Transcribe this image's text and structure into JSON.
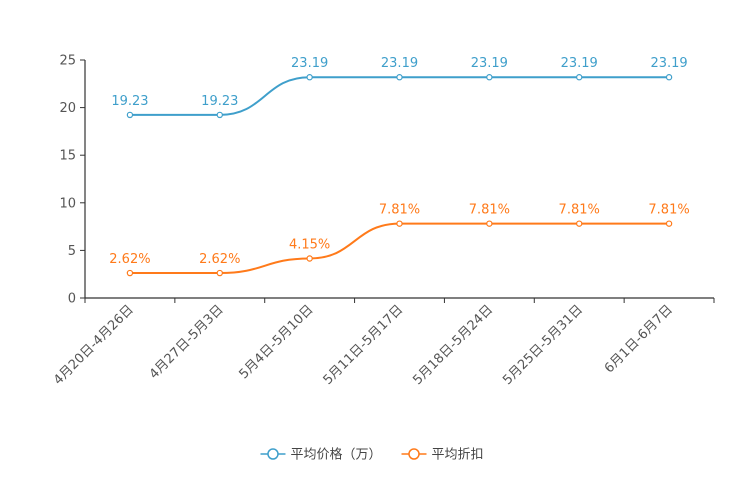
{
  "chart_data": {
    "type": "line",
    "categories": [
      "4月20日-4月26日",
      "4月27日-5月3日",
      "5月4日-5月10日",
      "5月11日-5月17日",
      "5月18日-5月24日",
      "5月25日-5月31日",
      "6月1日-6月7日"
    ],
    "ylim": [
      0,
      25
    ],
    "yticks": [
      0,
      5,
      10,
      15,
      20,
      25
    ],
    "series": [
      {
        "name": "平均价格（万）",
        "color": "#3f9fcb",
        "values": [
          19.23,
          19.23,
          23.19,
          23.19,
          23.19,
          23.19,
          23.19
        ],
        "labels": [
          "19.23",
          "19.23",
          "23.19",
          "23.19",
          "23.19",
          "23.19",
          "23.19"
        ]
      },
      {
        "name": "平均折扣",
        "color": "#ff7a1a",
        "values": [
          2.62,
          2.62,
          4.15,
          7.81,
          7.81,
          7.81,
          7.81
        ],
        "labels": [
          "2.62%",
          "2.62%",
          "4.15%",
          "7.81%",
          "7.81%",
          "7.81%",
          "7.81%"
        ]
      }
    ],
    "legend": "bottom-center",
    "title": "",
    "xlabel": "",
    "ylabel": ""
  }
}
